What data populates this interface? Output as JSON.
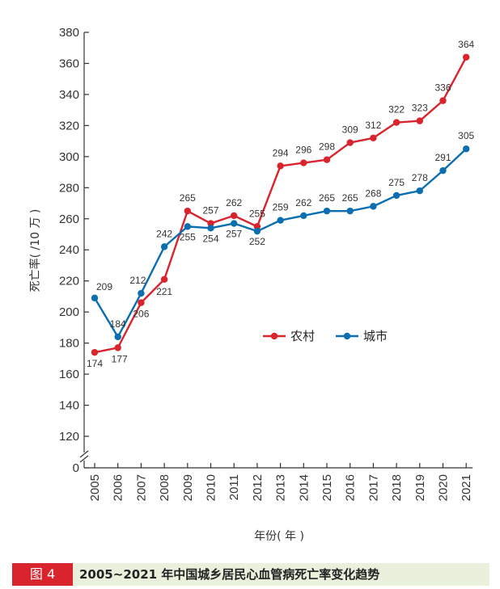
{
  "chart_data": {
    "type": "line",
    "title": "2005~2021 年中国城乡居民心血管病死亡率变化趋势",
    "xlabel": "年份( 年 )",
    "ylabel": "死亡率( /10 万 )",
    "categories": [
      "2005",
      "2006",
      "2007",
      "2008",
      "2009",
      "2010",
      "2011",
      "2012",
      "2013",
      "2014",
      "2015",
      "2016",
      "2017",
      "2018",
      "2019",
      "2020",
      "2021"
    ],
    "series": [
      {
        "name": "农村",
        "color": "#d9232d",
        "values": [
          174,
          177,
          206,
          221,
          265,
          257,
          262,
          255,
          294,
          296,
          298,
          309,
          312,
          322,
          323,
          336,
          364
        ]
      },
      {
        "name": "城市",
        "color": "#0a6eb0",
        "values": [
          209,
          184,
          212,
          242,
          255,
          254,
          257,
          252,
          259,
          262,
          265,
          265,
          268,
          275,
          278,
          291,
          305
        ]
      }
    ],
    "yticks": [
      0,
      120,
      140,
      160,
      180,
      200,
      220,
      240,
      260,
      280,
      300,
      320,
      340,
      360,
      380
    ],
    "ylim": [
      110,
      380
    ],
    "axis_break": true,
    "legend_position": "center-right"
  },
  "caption": {
    "figure_label": "图 4",
    "text": "2005~2021 年中国城乡居民心血管病死亡率变化趋势"
  }
}
